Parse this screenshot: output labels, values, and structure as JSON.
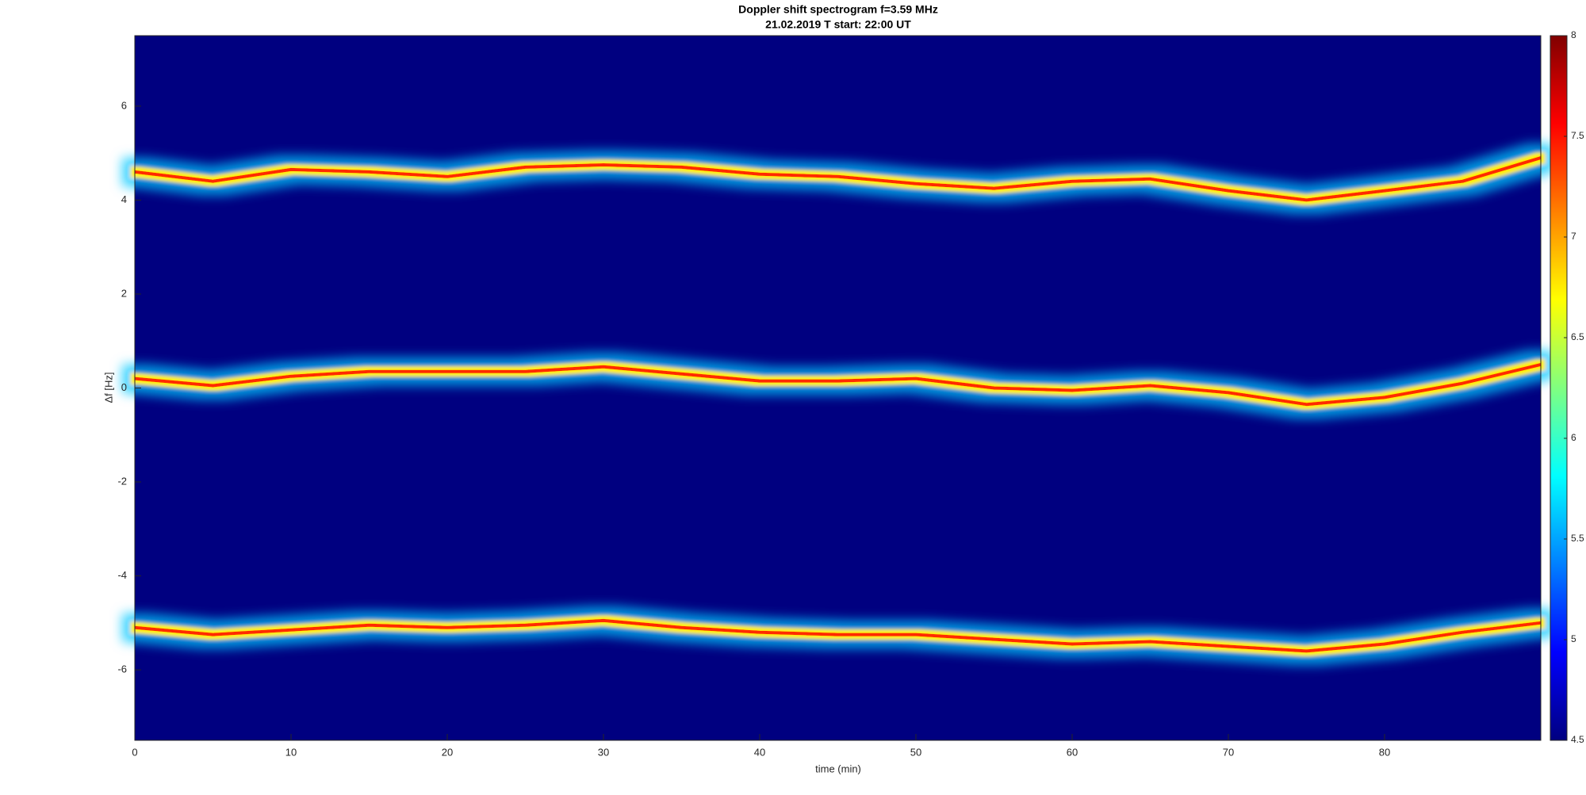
{
  "chart_data": {
    "type": "spectrogram",
    "title": "Doppler shift spectrogram f=3.59 MHz",
    "subtitle": "21.02.2019   T start: 22:00 UT",
    "x_label": "time (min)",
    "y_label": "Δf [Hz]",
    "x": [
      0,
      5,
      10,
      15,
      20,
      25,
      30,
      35,
      40,
      45,
      50,
      55,
      60,
      65,
      70,
      75,
      80,
      85,
      90
    ],
    "series": [
      {
        "color": "#ff2a00",
        "values": [
          4.6,
          4.4,
          4.65,
          4.6,
          4.5,
          4.7,
          4.75,
          4.7,
          4.55,
          4.5,
          4.35,
          4.25,
          4.4,
          4.45,
          4.2,
          4.0,
          4.2,
          4.4,
          4.9
        ]
      },
      {
        "color": "#ff2a00",
        "values": [
          0.2,
          0.05,
          0.25,
          0.35,
          0.35,
          0.35,
          0.45,
          0.3,
          0.15,
          0.15,
          0.2,
          0.0,
          -0.05,
          0.05,
          -0.1,
          -0.35,
          -0.2,
          0.1,
          0.5
        ]
      },
      {
        "color": "#ff2a00",
        "values": [
          -5.1,
          -5.25,
          -5.15,
          -5.05,
          -5.1,
          -5.05,
          -4.95,
          -5.1,
          -5.2,
          -5.25,
          -5.25,
          -5.35,
          -5.45,
          -5.4,
          -5.5,
          -5.6,
          -5.45,
          -5.2,
          -5.0
        ]
      }
    ],
    "xlim": [
      0,
      90
    ],
    "xticks": [
      0,
      10,
      20,
      30,
      40,
      50,
      60,
      70,
      80
    ],
    "ylim": [
      -7.5,
      7.5
    ],
    "yticks": [
      -6,
      -4,
      -2,
      0,
      2,
      4,
      6
    ],
    "colormap": [
      "#000080",
      "#0000ff",
      "#0080ff",
      "#00ffff",
      "#80ff80",
      "#ffff00",
      "#ff8000",
      "#ff0000",
      "#800000"
    ],
    "clim": [
      4.5,
      8
    ],
    "cticks": [
      4.5,
      5,
      5.5,
      6,
      6.5,
      7,
      7.5,
      8
    ]
  }
}
